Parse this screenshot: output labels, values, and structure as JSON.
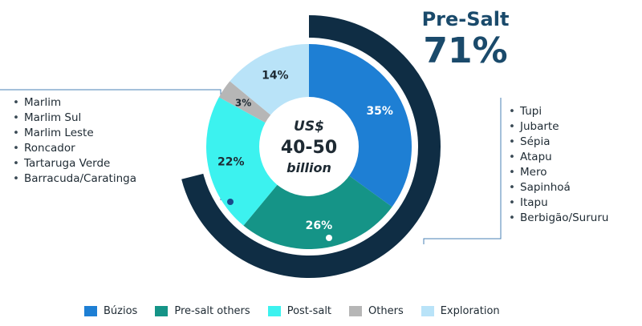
{
  "presalt": {
    "title": "Pre-Salt",
    "value": "71%"
  },
  "center": {
    "line1": "US$",
    "line2": "40-50",
    "line3": "billion"
  },
  "left_fields": [
    "Marlim",
    "Marlim Sul",
    "Marlim Leste",
    "Roncador",
    "Tartaruga Verde",
    "Barracuda/Caratinga"
  ],
  "right_fields": [
    "Tupi",
    "Jubarte",
    "Sépia",
    "Atapu",
    "Mero",
    "Sapinhoá",
    "Itapu",
    "Berbigão/Sururu"
  ],
  "colors": {
    "outer_ring": "#0f2d44",
    "connector": "#4a82b4",
    "text_dark": "#1e2a33"
  },
  "chart_data": {
    "type": "pie",
    "title": "",
    "slices": [
      {
        "name": "Búzios",
        "value": 35,
        "label": "35%",
        "color": "#1e7fd4"
      },
      {
        "name": "Pre-salt others",
        "value": 26,
        "label": "26%",
        "color": "#159487"
      },
      {
        "name": "Post-salt",
        "value": 22,
        "label": "22%",
        "color": "#3cf2ef"
      },
      {
        "name": "Others",
        "value": 3,
        "label": "3%",
        "color": "#b6b6b6"
      },
      {
        "name": "Exploration",
        "value": 14,
        "label": "14%",
        "color": "#b9e3f8"
      }
    ],
    "legend": [
      "Búzios",
      "Pre-salt others",
      "Post-salt",
      "Others",
      "Exploration"
    ],
    "legend_position": "bottom",
    "highlight": {
      "label": "Pre-Salt",
      "value": 71
    }
  }
}
